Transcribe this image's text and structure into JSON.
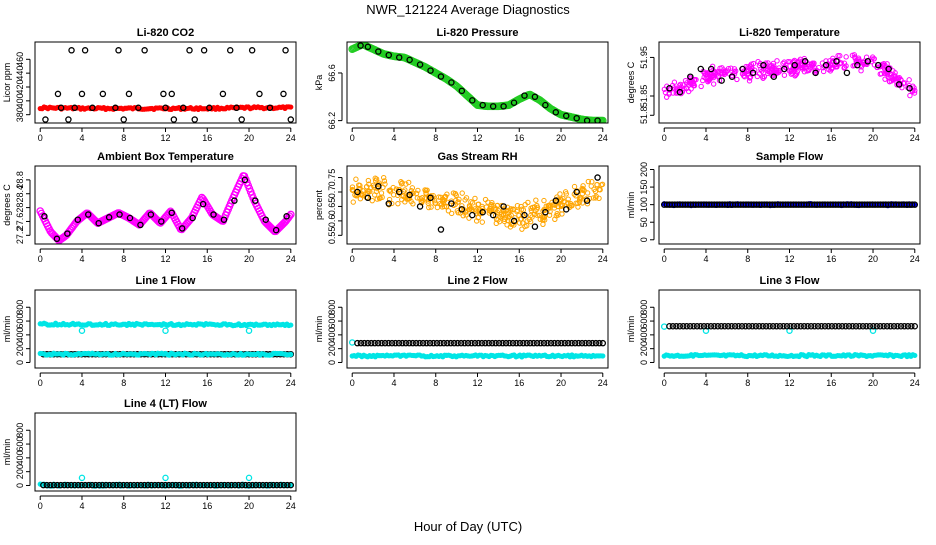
{
  "figure": {
    "title": "NWR_121224  Average Diagnostics",
    "xlabel": "Hour of Day (UTC)"
  },
  "colors": {
    "black": "#000000",
    "red": "#ff0000",
    "green": "#22cc22",
    "magenta": "#ff00ff",
    "orange": "#ffa500",
    "blue": "#0000ff",
    "cyan": "#00e5e5"
  },
  "chart_data": [
    {
      "id": "co2",
      "type": "scatter",
      "title": "Li-820 CO2",
      "ylabel": "Licor ppm",
      "xlim": [
        -0.5,
        24.5
      ],
      "ylim": [
        368,
        485
      ],
      "xticks": [
        0,
        4,
        8,
        12,
        16,
        20,
        24
      ],
      "yticks": [
        380,
        400,
        420,
        440,
        460
      ],
      "series": [
        {
          "color": "red",
          "kind": "band",
          "x": [
            0,
            4,
            8,
            12,
            16,
            20,
            24
          ],
          "y": [
            390,
            389,
            389,
            389,
            389,
            390,
            390
          ]
        },
        {
          "color": "black",
          "kind": "points",
          "x": [
            0.5,
            2,
            3,
            4.3,
            5,
            7.5,
            8,
            10,
            12,
            12.8,
            14.3,
            15.7,
            16.2,
            18.2,
            19.3,
            20.3,
            22,
            23.5,
            24
          ],
          "y": [
            373,
            390,
            473,
            473,
            390,
            473,
            373,
            473,
            390,
            373,
            473,
            473,
            390,
            473,
            373,
            473,
            390,
            473,
            373
          ]
        },
        {
          "color": "black",
          "kind": "points",
          "x": [
            1.7,
            2.7,
            3.3,
            4.0,
            6.0,
            7.2,
            8.5,
            9.4,
            11.8,
            12.6,
            13.7,
            14.8,
            17.5,
            18.8,
            21.0,
            23.3
          ],
          "y": [
            410,
            373,
            390,
            410,
            410,
            390,
            410,
            390,
            410,
            410,
            390,
            373,
            410,
            390,
            410,
            410
          ]
        }
      ]
    },
    {
      "id": "pressure",
      "type": "line",
      "title": "Li-820 Pressure",
      "ylabel": "kPa",
      "xlim": [
        -0.5,
        24.5
      ],
      "ylim": [
        66.18,
        66.86
      ],
      "xticks": [
        0,
        4,
        8,
        12,
        16,
        20,
        24
      ],
      "yticks": [
        66.2,
        66.6
      ],
      "series": [
        {
          "color": "green",
          "kind": "thickline",
          "x": [
            0,
            1,
            2,
            3,
            4,
            5,
            6,
            7,
            8,
            9,
            10,
            11,
            12,
            13,
            14,
            15,
            16,
            17,
            18,
            19,
            20,
            21,
            22,
            23,
            24
          ],
          "y": [
            66.8,
            66.84,
            66.8,
            66.76,
            66.74,
            66.73,
            66.69,
            66.65,
            66.6,
            66.55,
            66.49,
            66.41,
            66.33,
            66.32,
            66.32,
            66.33,
            66.38,
            66.42,
            66.37,
            66.3,
            66.25,
            66.23,
            66.21,
            66.2,
            66.2
          ]
        },
        {
          "color": "black",
          "kind": "points",
          "x": [
            0.8,
            1.5,
            2.5,
            3.5,
            4.5,
            5.5,
            6.5,
            7.5,
            8.5,
            9.5,
            10.5,
            11.5,
            12.5,
            13.5,
            14.5,
            15.5,
            16.5,
            17.5,
            18.5,
            19.5,
            20.5,
            21.5,
            22.5,
            23.5
          ],
          "y": [
            66.83,
            66.82,
            66.78,
            66.75,
            66.73,
            66.71,
            66.67,
            66.62,
            66.57,
            66.52,
            66.45,
            66.37,
            66.33,
            66.32,
            66.32,
            66.35,
            66.41,
            66.4,
            66.33,
            66.27,
            66.24,
            66.22,
            66.2,
            66.2
          ]
        }
      ]
    },
    {
      "id": "temperature",
      "type": "scatter",
      "title": "Li-820 Temperature",
      "ylabel": "degrees C",
      "xlim": [
        -0.5,
        24.5
      ],
      "ylim": [
        51.78,
        51.99
      ],
      "xticks": [
        0,
        4,
        8,
        12,
        16,
        20,
        24
      ],
      "yticks": [
        51.8,
        51.85,
        51.95
      ],
      "series": [
        {
          "color": "magenta",
          "kind": "cloud",
          "x": [
            0,
            2,
            4,
            6,
            8,
            10,
            12,
            14,
            16,
            18,
            20,
            22,
            24
          ],
          "y": [
            51.86,
            51.87,
            51.9,
            51.91,
            51.91,
            51.92,
            51.92,
            51.93,
            51.93,
            51.94,
            51.94,
            51.9,
            51.86
          ],
          "spread": 0.025
        },
        {
          "color": "black",
          "kind": "points",
          "x": [
            0.5,
            1.5,
            2.5,
            3.5,
            4.5,
            5.5,
            6.5,
            7.5,
            8.5,
            9.5,
            10.5,
            11.5,
            12.5,
            13.5,
            14.5,
            15.5,
            16.5,
            17.5,
            18.5,
            19.5,
            20.5,
            21.5,
            22.5,
            23.5
          ],
          "y": [
            51.87,
            51.86,
            51.9,
            51.92,
            51.92,
            51.89,
            51.9,
            51.92,
            51.91,
            51.93,
            51.9,
            51.92,
            51.93,
            51.94,
            51.91,
            51.93,
            51.94,
            51.91,
            51.93,
            51.94,
            51.93,
            51.92,
            51.88,
            51.87
          ]
        }
      ]
    },
    {
      "id": "ambient",
      "type": "line",
      "title": "Ambient Box Temperature",
      "ylabel": "degrees C",
      "xlim": [
        -0.5,
        24.5
      ],
      "ylim": [
        26.95,
        29.2
      ],
      "xticks": [
        0,
        4,
        8,
        12,
        16,
        20,
        24
      ],
      "yticks": [
        27.2,
        27.6,
        28.0,
        28.4,
        28.8
      ],
      "series": [
        {
          "color": "magenta",
          "kind": "thickline",
          "x": [
            0,
            1,
            1.8,
            2.5,
            3.5,
            4.5,
            5.5,
            6.5,
            7.5,
            8.5,
            9.5,
            10.5,
            11.5,
            12.5,
            13.5,
            14.5,
            15.5,
            16.5,
            17.5,
            18.5,
            19.5,
            20.5,
            21.5,
            22.5,
            23.5,
            24
          ],
          "y": [
            27.9,
            27.3,
            27.05,
            27.2,
            27.6,
            27.85,
            27.55,
            27.7,
            27.85,
            27.7,
            27.5,
            27.85,
            27.55,
            27.9,
            27.35,
            27.7,
            28.3,
            27.8,
            27.6,
            28.3,
            28.95,
            28.2,
            27.6,
            27.3,
            27.6,
            27.8
          ]
        },
        {
          "color": "black",
          "kind": "points",
          "x": [
            0.4,
            1.6,
            2.6,
            3.6,
            4.6,
            5.6,
            6.6,
            7.6,
            8.6,
            9.6,
            10.6,
            11.6,
            12.6,
            13.6,
            14.6,
            15.6,
            16.6,
            17.6,
            18.6,
            19.6,
            20.6,
            21.6,
            22.6,
            23.6
          ],
          "y": [
            27.75,
            27.1,
            27.25,
            27.65,
            27.8,
            27.55,
            27.72,
            27.8,
            27.7,
            27.5,
            27.8,
            27.6,
            27.85,
            27.4,
            27.7,
            28.1,
            27.8,
            27.65,
            28.2,
            28.8,
            28.2,
            27.65,
            27.35,
            27.75
          ]
        }
      ]
    },
    {
      "id": "rh",
      "type": "scatter",
      "title": "Gas Stream RH",
      "ylabel": "percent",
      "xlim": [
        -0.5,
        24.5
      ],
      "ylim": [
        0.52,
        0.79
      ],
      "xticks": [
        0,
        4,
        8,
        12,
        16,
        20,
        24
      ],
      "yticks": [
        0.55,
        0.6,
        0.65,
        0.7,
        0.75
      ],
      "series": [
        {
          "color": "orange",
          "kind": "cloud",
          "x": [
            0,
            2,
            4,
            6,
            8,
            10,
            12,
            14,
            16,
            18,
            20,
            22,
            24
          ],
          "y": [
            0.7,
            0.71,
            0.7,
            0.69,
            0.67,
            0.66,
            0.64,
            0.63,
            0.61,
            0.63,
            0.66,
            0.69,
            0.71
          ],
          "spread": 0.05
        },
        {
          "color": "black",
          "kind": "points",
          "x": [
            0.5,
            1.5,
            2.5,
            3.5,
            4.5,
            5.5,
            6.5,
            7.5,
            8.5,
            9.5,
            10.5,
            11.5,
            12.5,
            13.5,
            14.5,
            15.5,
            16.5,
            17.5,
            18.5,
            19.5,
            20.5,
            21.5,
            22.5,
            23.5
          ],
          "y": [
            0.7,
            0.68,
            0.72,
            0.66,
            0.7,
            0.69,
            0.65,
            0.68,
            0.57,
            0.66,
            0.64,
            0.62,
            0.63,
            0.62,
            0.65,
            0.6,
            0.62,
            0.58,
            0.63,
            0.67,
            0.64,
            0.7,
            0.67,
            0.75
          ]
        }
      ]
    },
    {
      "id": "sample",
      "type": "scatter",
      "title": "Sample Flow",
      "ylabel": "ml/min",
      "xlim": [
        -0.5,
        24.5
      ],
      "ylim": [
        -12,
        210
      ],
      "xticks": [
        0,
        4,
        8,
        12,
        16,
        20,
        24
      ],
      "yticks": [
        0,
        50,
        100,
        150,
        200
      ],
      "series": [
        {
          "color": "blue",
          "kind": "band",
          "x": [
            0,
            24
          ],
          "y": [
            100,
            100
          ]
        },
        {
          "color": "black",
          "kind": "ring",
          "x0": 0,
          "x1": 24,
          "n": 96,
          "y": 100
        }
      ]
    },
    {
      "id": "line1",
      "type": "scatter",
      "title": "Line 1 Flow",
      "ylabel": "ml/min",
      "xlim": [
        -0.5,
        24.5
      ],
      "ylim": [
        -80,
        1050
      ],
      "xticks": [
        0,
        4,
        8,
        12,
        16,
        20,
        24
      ],
      "yticks": [
        0,
        200,
        400,
        600,
        800
      ],
      "series": [
        {
          "color": "cyan",
          "kind": "band",
          "x": [
            0,
            24
          ],
          "y": [
            555,
            545
          ]
        },
        {
          "color": "cyan",
          "kind": "points",
          "x": [
            4,
            12,
            20
          ],
          "y": [
            460,
            460,
            460
          ]
        },
        {
          "color": "black",
          "kind": "ring",
          "x0": 0.3,
          "x1": 24,
          "n": 72,
          "y": 120
        },
        {
          "color": "cyan",
          "kind": "band",
          "x": [
            0,
            24
          ],
          "y": [
            120,
            120
          ]
        }
      ]
    },
    {
      "id": "line2",
      "type": "scatter",
      "title": "Line 2 Flow",
      "ylabel": "ml/min",
      "xlim": [
        -0.5,
        24.5
      ],
      "ylim": [
        -80,
        1050
      ],
      "xticks": [
        0,
        4,
        8,
        12,
        16,
        20,
        24
      ],
      "yticks": [
        0,
        200,
        400,
        600,
        800
      ],
      "series": [
        {
          "color": "cyan",
          "kind": "band",
          "x": [
            0,
            24
          ],
          "y": [
            95,
            95
          ]
        },
        {
          "color": "cyan",
          "kind": "points",
          "x": [
            0
          ],
          "y": [
            290
          ]
        },
        {
          "color": "black",
          "kind": "ring",
          "x0": 0.5,
          "x1": 24,
          "n": 72,
          "y": 280
        }
      ]
    },
    {
      "id": "line3",
      "type": "scatter",
      "title": "Line 3 Flow",
      "ylabel": "ml/min",
      "xlim": [
        -0.5,
        24.5
      ],
      "ylim": [
        -80,
        1050
      ],
      "xticks": [
        0,
        4,
        8,
        12,
        16,
        20,
        24
      ],
      "yticks": [
        0,
        200,
        400,
        600,
        800
      ],
      "series": [
        {
          "color": "cyan",
          "kind": "band",
          "x": [
            0,
            24
          ],
          "y": [
            100,
            100
          ]
        },
        {
          "color": "cyan",
          "kind": "points",
          "x": [
            0,
            4,
            12,
            20
          ],
          "y": [
            520,
            460,
            460,
            460
          ]
        },
        {
          "color": "black",
          "kind": "ring",
          "x0": 0.5,
          "x1": 24,
          "n": 72,
          "y": 525
        }
      ]
    },
    {
      "id": "line4",
      "type": "scatter",
      "title": "Line 4 (LT) Flow",
      "ylabel": "ml/min",
      "xlim": [
        -0.5,
        24.5
      ],
      "ylim": [
        -80,
        1050
      ],
      "xticks": [
        0,
        4,
        8,
        12,
        16,
        20,
        24
      ],
      "yticks": [
        0,
        200,
        400,
        600,
        800
      ],
      "series": [
        {
          "color": "cyan",
          "kind": "band",
          "x": [
            0,
            24
          ],
          "y": [
            5,
            5
          ]
        },
        {
          "color": "cyan",
          "kind": "points",
          "x": [
            4,
            12,
            20
          ],
          "y": [
            110,
            110,
            110
          ]
        },
        {
          "color": "black",
          "kind": "ring",
          "x0": 0.3,
          "x1": 24,
          "n": 72,
          "y": 5
        }
      ]
    }
  ]
}
